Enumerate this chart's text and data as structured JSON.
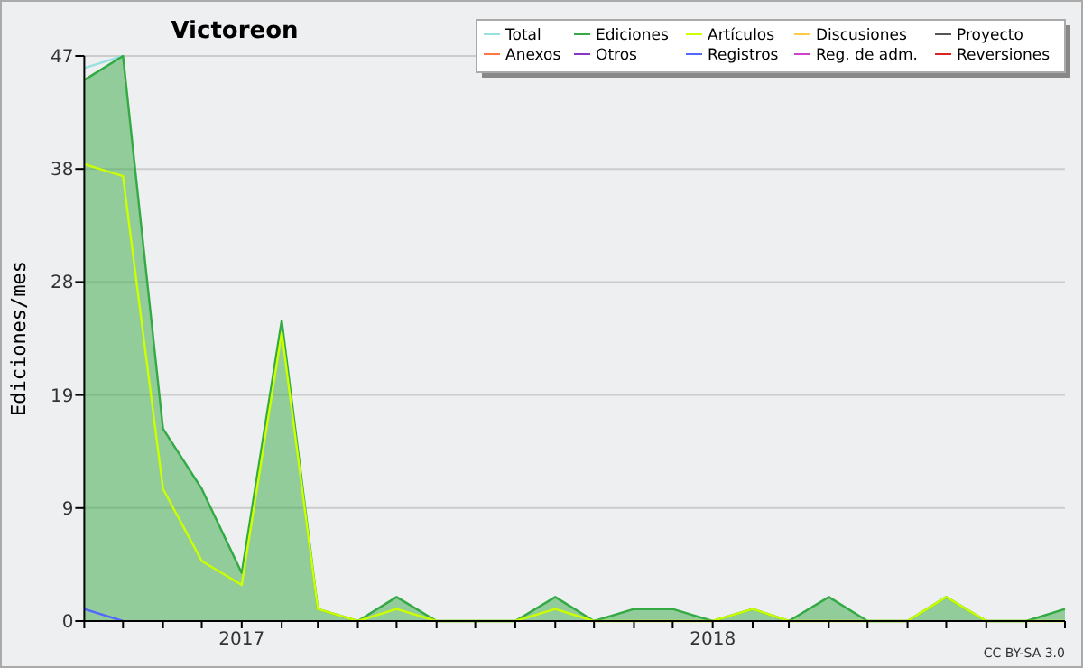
{
  "chart_data": {
    "type": "line",
    "title": "Victoreon",
    "ylabel": "Ediciones/mes",
    "x": [
      "2016-09",
      "2016-10",
      "2016-11",
      "2016-12",
      "2017-01",
      "2017-02",
      "2017-03",
      "2017-04",
      "2017-05",
      "2017-06",
      "2017-07",
      "2017-08",
      "2017-09",
      "2017-10",
      "2017-11",
      "2017-12",
      "2018-01",
      "2018-02",
      "2018-03",
      "2018-04",
      "2018-05",
      "2018-06",
      "2018-07",
      "2018-08",
      "2018-09",
      "2018-10"
    ],
    "series": [
      {
        "name": "Total",
        "color": "#99e0e0",
        "values": [
          46,
          47,
          null,
          null,
          null,
          null,
          null,
          null,
          null,
          null,
          null,
          null,
          null,
          null,
          null,
          null,
          null,
          null,
          null,
          null,
          null,
          null,
          null,
          null,
          null,
          null
        ]
      },
      {
        "name": "Ediciones",
        "color": "#33aa44",
        "type": "area",
        "values": [
          45,
          47,
          16,
          11,
          4,
          25,
          1,
          0,
          2,
          0,
          0,
          0,
          2,
          0,
          1,
          1,
          0,
          1,
          0,
          2,
          0,
          0,
          2,
          0,
          0,
          1
        ]
      },
      {
        "name": "Artículos",
        "color": "#ccff00",
        "values": [
          38,
          37,
          11,
          5,
          3,
          24,
          1,
          0,
          1,
          0,
          0,
          0,
          1,
          0,
          0,
          0,
          0,
          1,
          0,
          0,
          0,
          0,
          2,
          0,
          0,
          0
        ]
      },
      {
        "name": "Discusiones",
        "color": "#ffcc44",
        "values": [
          null,
          null,
          null,
          null,
          null,
          null,
          null,
          null,
          null,
          null,
          null,
          null,
          null,
          null,
          null,
          null,
          null,
          null,
          null,
          null,
          null,
          null,
          null,
          null,
          null,
          null
        ]
      },
      {
        "name": "Proyecto",
        "color": "#555555",
        "values": [
          null,
          null,
          null,
          null,
          null,
          null,
          null,
          null,
          null,
          null,
          null,
          null,
          null,
          null,
          null,
          null,
          null,
          null,
          null,
          null,
          null,
          null,
          null,
          null,
          null,
          null
        ]
      },
      {
        "name": "Anexos",
        "color": "#ff7744",
        "values": [
          null,
          null,
          null,
          null,
          null,
          null,
          null,
          null,
          null,
          null,
          null,
          null,
          null,
          null,
          null,
          null,
          null,
          null,
          null,
          null,
          null,
          null,
          null,
          null,
          null,
          null
        ]
      },
      {
        "name": "Otros",
        "color": "#8833cc",
        "values": [
          null,
          null,
          null,
          null,
          null,
          null,
          null,
          null,
          null,
          null,
          null,
          null,
          null,
          null,
          null,
          null,
          null,
          null,
          null,
          null,
          null,
          null,
          null,
          null,
          null,
          null
        ]
      },
      {
        "name": "Registros",
        "color": "#5566ff",
        "values": [
          1,
          0,
          null,
          null,
          null,
          null,
          null,
          null,
          null,
          null,
          null,
          null,
          null,
          null,
          null,
          null,
          null,
          null,
          null,
          null,
          null,
          null,
          null,
          null,
          null,
          null
        ]
      },
      {
        "name": "Reg. de adm.",
        "color": "#cc44cc",
        "values": [
          null,
          null,
          null,
          null,
          null,
          null,
          null,
          null,
          null,
          null,
          null,
          null,
          null,
          null,
          null,
          null,
          null,
          null,
          null,
          null,
          null,
          null,
          null,
          null,
          null,
          null
        ]
      },
      {
        "name": "Reversiones",
        "color": "#dd2222",
        "values": [
          null,
          null,
          null,
          null,
          null,
          null,
          null,
          null,
          null,
          null,
          null,
          null,
          null,
          null,
          null,
          null,
          null,
          null,
          null,
          null,
          null,
          null,
          null,
          null,
          null,
          null
        ]
      }
    ],
    "xlim": [
      "2016-09",
      "2018-10"
    ],
    "xticks": [
      {
        "value": "2016-09",
        "label": null
      },
      {
        "value": "2016-10",
        "label": null
      },
      {
        "value": "2016-11",
        "label": null
      },
      {
        "value": "2016-12",
        "label": null
      },
      {
        "value": "2017-01",
        "label": "2017"
      },
      {
        "value": "2017-02",
        "label": null
      },
      {
        "value": "2017-03",
        "label": null
      },
      {
        "value": "2017-04",
        "label": null
      },
      {
        "value": "2017-05",
        "label": null
      },
      {
        "value": "2017-06",
        "label": null
      },
      {
        "value": "2017-07",
        "label": null
      },
      {
        "value": "2017-08",
        "label": null
      },
      {
        "value": "2017-09",
        "label": null
      },
      {
        "value": "2017-10",
        "label": null
      },
      {
        "value": "2017-11",
        "label": null
      },
      {
        "value": "2017-12",
        "label": null
      },
      {
        "value": "2018-01",
        "label": "2018"
      },
      {
        "value": "2018-02",
        "label": null
      },
      {
        "value": "2018-03",
        "label": null
      },
      {
        "value": "2018-04",
        "label": null
      },
      {
        "value": "2018-05",
        "label": null
      },
      {
        "value": "2018-06",
        "label": null
      },
      {
        "value": "2018-07",
        "label": null
      },
      {
        "value": "2018-08",
        "label": null
      },
      {
        "value": "2018-09",
        "label": null
      },
      {
        "value": "2018-10",
        "label": null
      }
    ],
    "ylim": [
      0,
      47
    ],
    "yticks": [
      0,
      {
        "value": 9.4,
        "label": "9"
      },
      {
        "value": 18.8,
        "label": "19"
      },
      {
        "value": 28.2,
        "label": "28"
      },
      {
        "value": 37.6,
        "label": "38"
      },
      47
    ],
    "grid": "y",
    "legend": "top right",
    "annotations": [
      "CC BY-SA 3.0"
    ]
  }
}
